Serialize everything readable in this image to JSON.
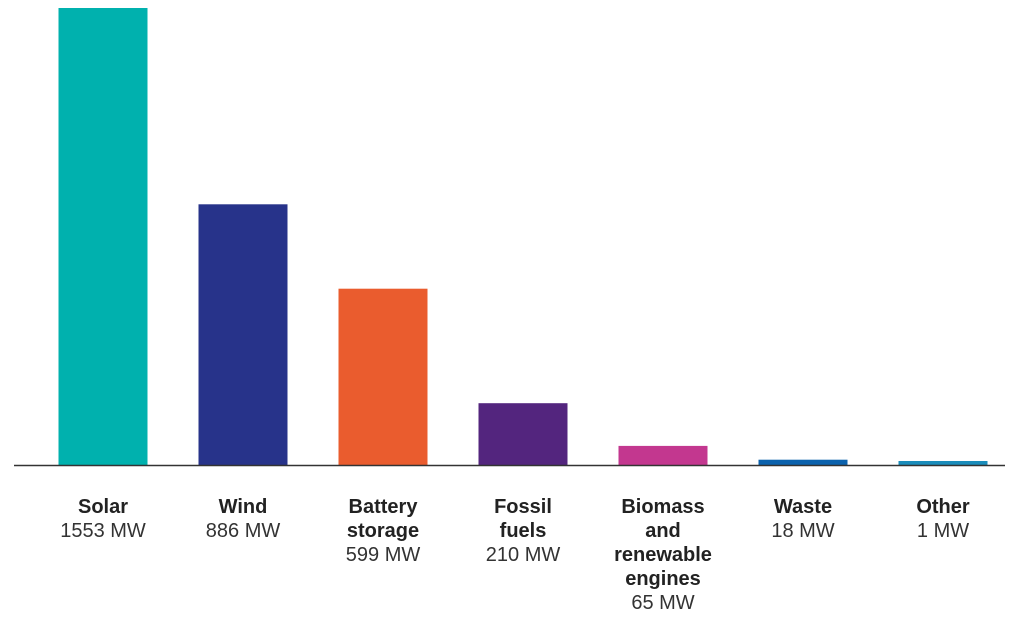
{
  "chart_data": {
    "type": "bar",
    "categories": [
      "Solar",
      "Wind",
      "Battery storage",
      "Fossil fuels",
      "Biomass and renewable engines",
      "Waste",
      "Other"
    ],
    "category_label_lines": [
      [
        "Solar"
      ],
      [
        "Wind"
      ],
      [
        "Battery",
        "storage"
      ],
      [
        "Fossil",
        "fuels"
      ],
      [
        "Biomass",
        "and",
        "renewable",
        "engines"
      ],
      [
        "Waste"
      ],
      [
        "Other"
      ]
    ],
    "values": [
      1553,
      886,
      599,
      210,
      65,
      18,
      1
    ],
    "value_labels": [
      "1553 MW",
      "886 MW",
      "599 MW",
      "210 MW",
      "65 MW",
      "18 MW",
      "1 MW"
    ],
    "unit": "MW",
    "colors": [
      "#00b1ae",
      "#27338a",
      "#ea5c2e",
      "#53257e",
      "#c3378f",
      "#0b62ad",
      "#1a8dbb"
    ],
    "baseline_color": "#333333",
    "ylim": [
      0,
      1553
    ],
    "title": "",
    "xlabel": "",
    "ylabel": "",
    "grid": false,
    "legend": "none"
  }
}
